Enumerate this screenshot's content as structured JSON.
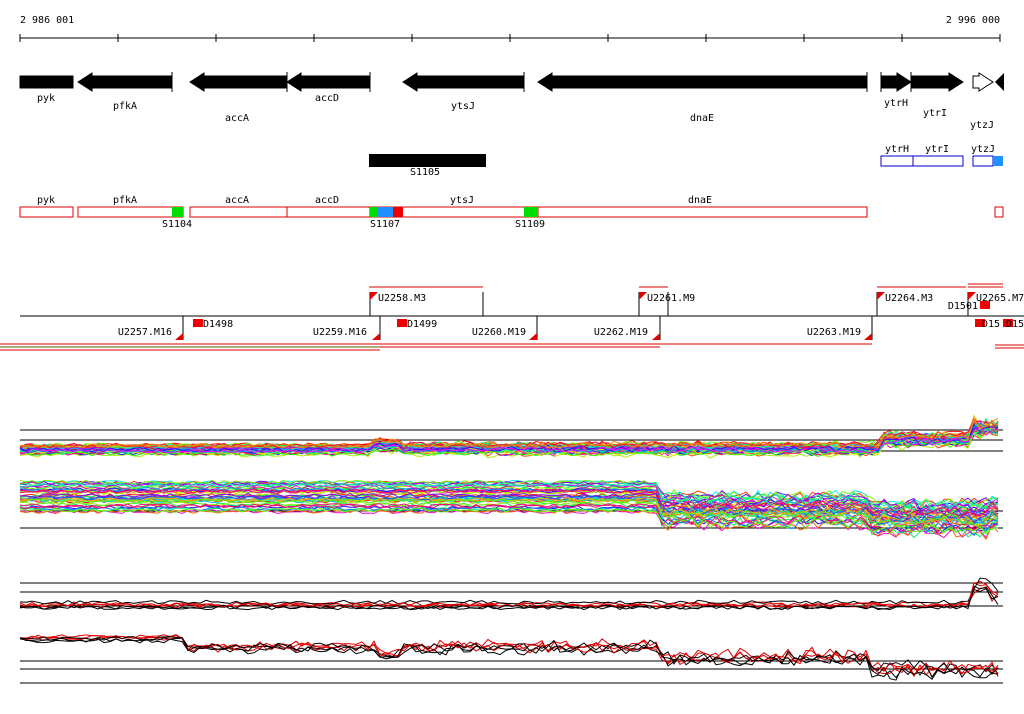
{
  "ruler": {
    "start": "2 986 001",
    "end": "2 996 000"
  },
  "genes": [
    "pyk",
    "pfkA",
    "accA",
    "accD",
    "ytsJ",
    "dnaE",
    "ytrH",
    "ytrI",
    "ytzJ"
  ],
  "segment": "S1105",
  "blue_boxes": [
    "ytrH",
    "ytrI",
    "ytzJ"
  ],
  "red_boxes": [
    "pyk",
    "pfkA",
    "accA",
    "accD",
    "ytsJ",
    "dnaE"
  ],
  "sites": [
    "S1104",
    "S1107",
    "S1109"
  ],
  "units_upper": [
    "U2258.M3",
    "U2261.M9",
    "U2264.M3",
    "U2265.M7"
  ],
  "units_lower": [
    "U2257.M16",
    "U2259.M16",
    "U2260.M19",
    "U2262.M19",
    "U2263.M19"
  ],
  "deletions": [
    "D1498",
    "D1499",
    "D1501",
    "D15",
    "D15"
  ]
}
